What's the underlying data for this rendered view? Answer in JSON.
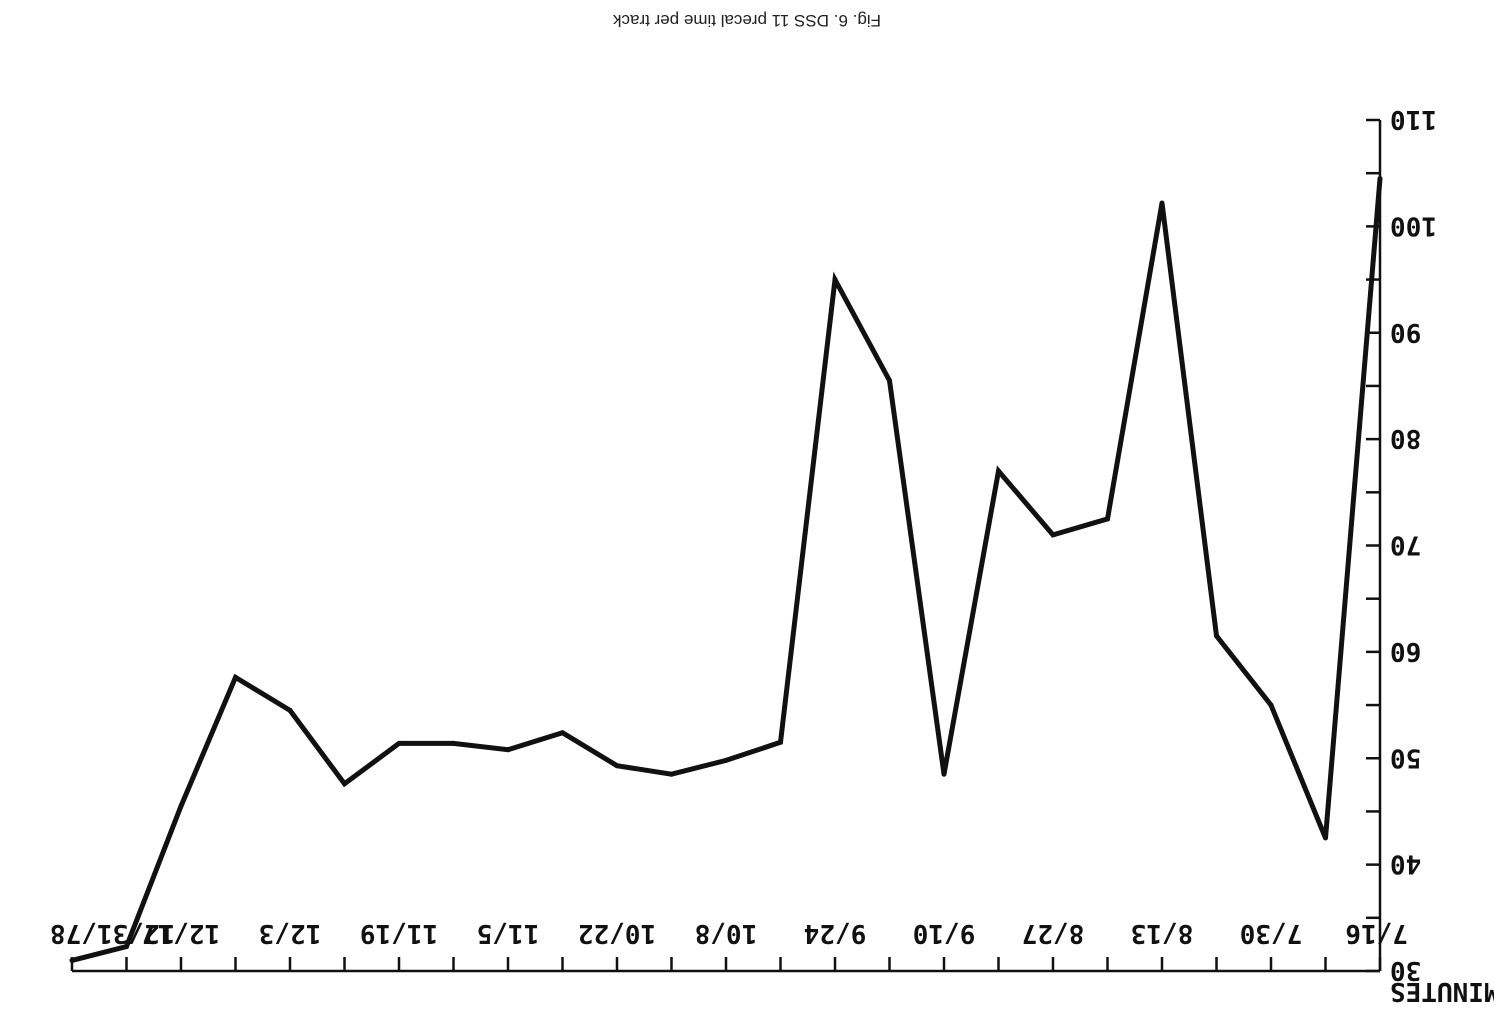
{
  "caption": "Fig. 6. DSS 11 precal time per track",
  "chart_data": {
    "type": "line",
    "title": "",
    "xlabel": "",
    "ylabel": "MINUTES",
    "x_tick_labels": [
      "7/16",
      "7/30",
      "8/13",
      "8/27",
      "9/10",
      "9/24",
      "10/8",
      "10/22",
      "11/5",
      "11/19",
      "12/3",
      "12/17",
      "12/31/78"
    ],
    "ylim": [
      30,
      110
    ],
    "y_ticks": [
      30,
      40,
      50,
      60,
      70,
      80,
      90,
      100,
      110
    ],
    "y_tick_labels": [
      "30",
      "40",
      "50",
      "60",
      "70",
      "80",
      "90",
      "100",
      "110"
    ],
    "grid": false,
    "series": [
      {
        "x": [
          "7/16",
          "7/23",
          "7/30",
          "8/6",
          "8/13",
          "8/20",
          "8/27",
          "9/3",
          "9/10",
          "9/17",
          "9/24",
          "10/1",
          "10/8",
          "10/15",
          "10/22",
          "10/29",
          "11/5",
          "11/12",
          "11/19",
          "11/26",
          "12/3",
          "12/10",
          "12/17",
          "12/24",
          "12/31/78"
        ],
        "values": [
          104.5,
          42.5,
          55,
          61.5,
          102.2,
          72.5,
          71,
          77,
          48.5,
          85.5,
          95,
          51.5,
          49.8,
          48.5,
          49.3,
          52.4,
          50.8,
          51.4,
          51.4,
          47.6,
          54.5,
          57.6,
          45.5,
          32.3,
          31
        ]
      }
    ]
  }
}
